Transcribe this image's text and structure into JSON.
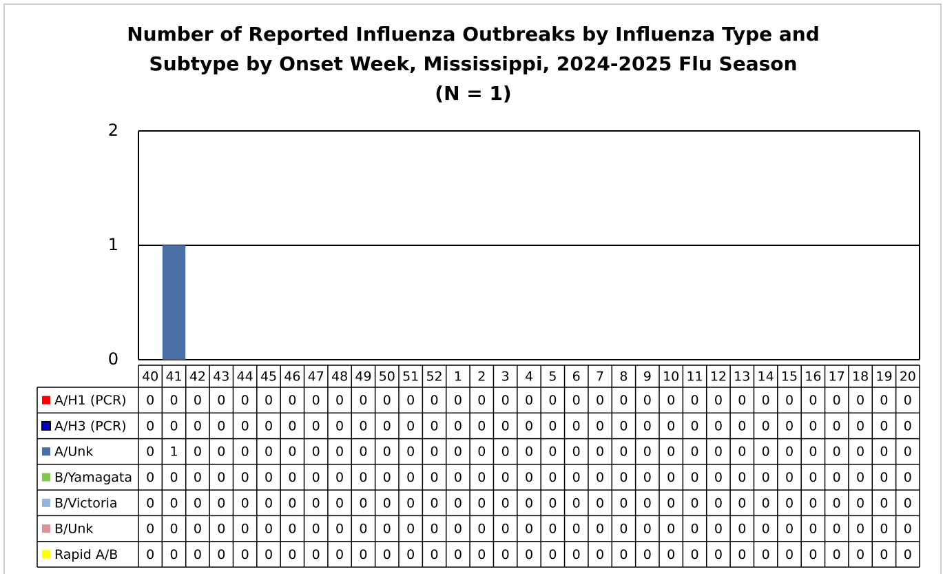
{
  "chart_data": {
    "type": "stacked_bar",
    "title": [
      "Number of Reported Influenza Outbreaks by Influenza Type and",
      "Subtype by Onset Week, Mississippi, 2024-2025  Flu Season",
      "(N = 1)"
    ],
    "categories": [
      "40",
      "41",
      "42",
      "43",
      "44",
      "45",
      "46",
      "47",
      "48",
      "49",
      "50",
      "51",
      "52",
      "1",
      "2",
      "3",
      "4",
      "5",
      "6",
      "7",
      "8",
      "9",
      "10",
      "11",
      "12",
      "13",
      "14",
      "15",
      "16",
      "17",
      "18",
      "19",
      "20"
    ],
    "series": [
      {
        "name": "A/H1 (PCR)",
        "color": "#ff0000",
        "values": [
          0,
          0,
          0,
          0,
          0,
          0,
          0,
          0,
          0,
          0,
          0,
          0,
          0,
          0,
          0,
          0,
          0,
          0,
          0,
          0,
          0,
          0,
          0,
          0,
          0,
          0,
          0,
          0,
          0,
          0,
          0,
          0,
          0
        ]
      },
      {
        "name": "A/H3 (PCR)",
        "color": "#0000cc",
        "values": [
          0,
          0,
          0,
          0,
          0,
          0,
          0,
          0,
          0,
          0,
          0,
          0,
          0,
          0,
          0,
          0,
          0,
          0,
          0,
          0,
          0,
          0,
          0,
          0,
          0,
          0,
          0,
          0,
          0,
          0,
          0,
          0,
          0
        ]
      },
      {
        "name": "A/Unk",
        "color": "#4a6fa5",
        "values": [
          0,
          1,
          0,
          0,
          0,
          0,
          0,
          0,
          0,
          0,
          0,
          0,
          0,
          0,
          0,
          0,
          0,
          0,
          0,
          0,
          0,
          0,
          0,
          0,
          0,
          0,
          0,
          0,
          0,
          0,
          0,
          0,
          0
        ]
      },
      {
        "name": "B/Yamagata",
        "color": "#7fc94f",
        "values": [
          0,
          0,
          0,
          0,
          0,
          0,
          0,
          0,
          0,
          0,
          0,
          0,
          0,
          0,
          0,
          0,
          0,
          0,
          0,
          0,
          0,
          0,
          0,
          0,
          0,
          0,
          0,
          0,
          0,
          0,
          0,
          0,
          0
        ]
      },
      {
        "name": "B/Victoria",
        "color": "#95b3d7",
        "values": [
          0,
          0,
          0,
          0,
          0,
          0,
          0,
          0,
          0,
          0,
          0,
          0,
          0,
          0,
          0,
          0,
          0,
          0,
          0,
          0,
          0,
          0,
          0,
          0,
          0,
          0,
          0,
          0,
          0,
          0,
          0,
          0,
          0
        ]
      },
      {
        "name": "B/Unk",
        "color": "#d99594",
        "values": [
          0,
          0,
          0,
          0,
          0,
          0,
          0,
          0,
          0,
          0,
          0,
          0,
          0,
          0,
          0,
          0,
          0,
          0,
          0,
          0,
          0,
          0,
          0,
          0,
          0,
          0,
          0,
          0,
          0,
          0,
          0,
          0,
          0
        ]
      },
      {
        "name": "Rapid A/B",
        "color": "#ffff00",
        "values": [
          0,
          0,
          0,
          0,
          0,
          0,
          0,
          0,
          0,
          0,
          0,
          0,
          0,
          0,
          0,
          0,
          0,
          0,
          0,
          0,
          0,
          0,
          0,
          0,
          0,
          0,
          0,
          0,
          0,
          0,
          0,
          0,
          0
        ]
      }
    ],
    "ylim": [
      0,
      2
    ],
    "yticks": [
      0,
      1,
      2
    ],
    "grid": true
  }
}
